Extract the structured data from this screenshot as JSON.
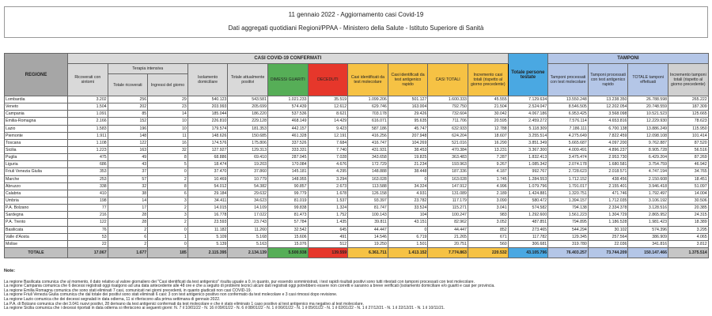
{
  "header": {
    "title": "11 gennaio 2022 - Aggiornamento casi Covid-19",
    "subtitle": "Dati aggregati quotidiani Regioni/PPAA - Ministero della Salute - Istituto Superiore di Sanità"
  },
  "table": {
    "group_casi": "CASI COVID-19 CONFERMATI",
    "group_tamponi": "TAMPONI",
    "group_terapia": "Terapia intensiva",
    "columns": {
      "regione": "REGIONE",
      "ricoverati": "Ricoverati con sintomi",
      "ti_totale": "Totale ricoverati",
      "ti_ingressi": "Ingressi del giorno",
      "isolamento": "Isolamento domiciliare",
      "attualmente": "Totale attualmente positivi",
      "dimessi": "DIMESSI GUARITI",
      "deceduti": "DECEDUTI",
      "casi_mol": "Casi identificati da test molecolare",
      "casi_ant": "Casi identificati da test antigenico rapido",
      "casi_tot": "CASI TOTALI",
      "incremento": "Incremento casi totali (rispetto al giorno precedente)",
      "persone": "Totale persone testate",
      "tamp_mol": "Tamponi processati con test molecolare",
      "tamp_ant": "Tamponi processati con test antigenico rapido",
      "tamp_tot": "TOTALE tamponi effettuati",
      "tamp_inc": "Incremento tamponi totali (rispetto al giorno precedente)"
    },
    "rows": [
      [
        "Lombardia",
        "3.202",
        "256",
        "29",
        "540.123",
        "543.581",
        "1.021.233",
        "35.519",
        "1.099.206",
        "501.127",
        "1.600.333",
        "45.555",
        "7.129.634",
        "13.550.248",
        "13.238.350",
        "26.788.598",
        "265.222"
      ],
      [
        "Veneto",
        "1.504",
        "202",
        "23",
        "203.993",
        "205.699",
        "574.439",
        "12.612",
        "629.746",
        "163.004",
        "792.750",
        "21.504",
        "2.524.047",
        "8.546.505",
        "12.202.054",
        "20.748.559",
        "187.309"
      ],
      [
        "Campania",
        "1.091",
        "85",
        "14",
        "185.044",
        "186.220",
        "537.536",
        "8.621",
        "703.178",
        "29.426",
        "732.604",
        "30.042",
        "4.067.186",
        "6.953.425",
        "3.568.098",
        "10.521.523",
        "125.665"
      ],
      [
        "Emilia-Romagna",
        "2.166",
        "152",
        "10",
        "226.810",
        "229.128",
        "468.149",
        "14.429",
        "616.071",
        "95.635",
        "711.706",
        "20.595",
        "2.459.272",
        "7.576.114",
        "4.653.816",
        "12.229.930",
        "78.623"
      ],
      [
        "Lazio",
        "1.583",
        "196",
        "10",
        "179.574",
        "181.353",
        "442.157",
        "9.423",
        "587.186",
        "45.747",
        "632.933",
        "12.788",
        "5.118.309",
        "7.186.111",
        "6.700.138",
        "13.886.249",
        "115.950"
      ],
      [
        "Piemonte",
        "1.911",
        "148",
        "11",
        "148.626",
        "150.685",
        "461.328",
        "12.191",
        "416.256",
        "207.948",
        "624.204",
        "18.607",
        "3.255.514",
        "4.275.649",
        "7.822.459",
        "12.098.108",
        "101.414"
      ],
      [
        "Toscana",
        "1.108",
        "122",
        "16",
        "174.576",
        "175.806",
        "337.526",
        "7.684",
        "416.747",
        "104.269",
        "521.016",
        "16.290",
        "3.851.349",
        "5.665.687",
        "4.097.200",
        "9.762.887",
        "87.520"
      ],
      [
        "Sicilia",
        "1.223",
        "163",
        "32",
        "127.927",
        "129.313",
        "333.331",
        "7.740",
        "431.931",
        "38.453",
        "470.384",
        "13.231",
        "3.367.300",
        "4.009.491",
        "4.896.237",
        "8.905.728",
        "56.516"
      ],
      [
        "Puglia",
        "475",
        "49",
        "8",
        "68.886",
        "69.410",
        "287.045",
        "7.028",
        "343.658",
        "19.825",
        "363.483",
        "7.287",
        "1.832.413",
        "3.475.474",
        "2.953.730",
        "6.429.204",
        "87.269"
      ],
      [
        "Liguria",
        "686",
        "43",
        "5",
        "18.474",
        "19.203",
        "170.084",
        "4.676",
        "172.729",
        "21.234",
        "193.963",
        "9.267",
        "1.085.342",
        "2.074.178",
        "1.680.581",
        "3.754.759",
        "46.942"
      ],
      [
        "Friuli Venezia Giulia",
        "353",
        "37",
        "0",
        "37.470",
        "37.860",
        "145.181",
        "4.295",
        "148.888",
        "38.448",
        "187.336",
        "4.187",
        "992.767",
        "2.728.623",
        "2.018.571",
        "4.747.194",
        "34.765"
      ],
      [
        "Marche",
        "253",
        "57",
        "2",
        "10.469",
        "10.779",
        "148.955",
        "3.294",
        "163.028",
        "0",
        "163.028",
        "1.745",
        "1.284.553",
        "1.712.152",
        "438.456",
        "2.150.608",
        "18.451"
      ],
      [
        "Abruzzo",
        "338",
        "32",
        "8",
        "54.012",
        "54.382",
        "90.857",
        "2.673",
        "113.588",
        "34.324",
        "147.912",
        "4.996",
        "1.079.796",
        "1.791.017",
        "2.155.401",
        "3.946.418",
        "51.097"
      ],
      [
        "Calabria",
        "410",
        "38",
        "6",
        "29.184",
        "29.632",
        "99.779",
        "1.678",
        "126.158",
        "4.931",
        "131.089",
        "2.189",
        "1.424.881",
        "1.320.751",
        "471.746",
        "1.792.497",
        "14.004"
      ],
      [
        "Umbria",
        "198",
        "14",
        "3",
        "34.411",
        "34.623",
        "81.019",
        "1.537",
        "93.397",
        "23.782",
        "117.179",
        "3.090",
        "580.472",
        "1.394.157",
        "1.712.035",
        "3.106.192",
        "30.506"
      ],
      [
        "P.A. Bolzano",
        "77",
        "17",
        "2",
        "14.015",
        "14.109",
        "99.838",
        "1.324",
        "81.747",
        "33.524",
        "115.271",
        "3.041",
        "574.582",
        "794.138",
        "2.334.378",
        "3.128.516",
        "20.385"
      ],
      [
        "Sardegna",
        "216",
        "28",
        "3",
        "16.778",
        "17.022",
        "81.473",
        "1.752",
        "100.143",
        "104",
        "100.247",
        "983",
        "1.292.600",
        "1.561.223",
        "1.304.729",
        "2.865.952",
        "24.315"
      ],
      [
        "P.A. Trento",
        "122",
        "28",
        "2",
        "23.593",
        "23.743",
        "57.784",
        "1.435",
        "39.811",
        "43.151",
        "82.962",
        "3.052",
        "487.851",
        "794.895",
        "1.186.528",
        "1.981.423",
        "18.389"
      ],
      [
        "Basilicata",
        "76",
        "2",
        "0",
        "11.182",
        "11.260",
        "32.542",
        "645",
        "44.447",
        "0",
        "44.447",
        "852",
        "273.465",
        "544.294",
        "30.102",
        "574.396",
        "3.295"
      ],
      [
        "Valle d'Aosta",
        "53",
        "6",
        "1",
        "5.109",
        "5.168",
        "15.606",
        "491",
        "14.546",
        "6.719",
        "21.265",
        "671",
        "117.782",
        "129.345",
        "257.564",
        "386.909",
        "4.065"
      ],
      [
        "Molise",
        "22",
        "2",
        "0",
        "5.139",
        "5.163",
        "15.076",
        "512",
        "19.250",
        "1.501",
        "20.751",
        "560",
        "306.681",
        "319.780",
        "22.036",
        "341.816",
        "3.812"
      ]
    ],
    "totals": [
      "TOTALE",
      "17.067",
      "1.677",
      "185",
      "2.115.395",
      "2.134.139",
      "5.500.938",
      "139.559",
      "6.361.711",
      "1.413.152",
      "7.774.863",
      "220.532",
      "43.105.796",
      "76.403.257",
      "73.744.209",
      "150.147.466",
      "1.375.514"
    ]
  },
  "notes": {
    "title": "Note:",
    "lines": [
      "La regione Basilicata comunica che al momento, il dato relativo al valore giornaliero dei \"Casi identificati da test antigenico\" risulta uguale a 0, in quanto, pur essendo somministrati, i test rapidi risultati positivi sono tutti ritestati con tamponi processati con test molecolare.",
      "La regione Campania comunica che 6 decessi registrati oggi risalgono ad una data antecedente alle 48 ore e che a seguito di problemi tecnici alcuni dati registrati oggi potrebbero essere non corretti e saranno a breve verificati (isolamento domiciliare e/o guariti e casi per provincia.",
      "La regione Emilia Romagna comunica che sono stati eliminati 7 casi, comunicati nei giorni precedenti, in quanto giudicati non casi COVID-19.",
      "La regione Friuli Venezia Giulia comunica che dal totale dei positivi sono stati eliminati 6 casi: 3 con test antigenico positivo non confermato da test molecolare e 3 casi rimossi dopo revisione.",
      "La regione Lazio comunica che dei decessi segnalati in data odierna, 11 si riferiscono alla prima settimana di gennaio 2022.",
      "La P.A. di Bolzano comunica che dei 3.041 nuovi positivi, 28 derivano da test antigenici confermati da test molecolare e che è stato eliminato 1 caso positivo al test antigenico ma negativo al test molecolare.",
      "La regione Sicilia comunica che i decessi riportati in data odierna si riferiscono ai seguenti giorni: N. 7 il 10/01/22 - N. 16 il 09/01/22 - N. 6 il 08/01/22 - N. 1 il 06/01/22 - N. 1 il 05/01/22 - N. 1 il 02/01/22 - N. 1 il 27/12/21 - N. 1 il 22/12/21 - N. 1 il 10/11/21."
    ]
  },
  "colors": {
    "dimessi": "#56ae57",
    "deceduti": "#e6372b",
    "casi": "#f6c244",
    "persone": "#4aa8e2",
    "tamponi": "#b4c6e7"
  }
}
